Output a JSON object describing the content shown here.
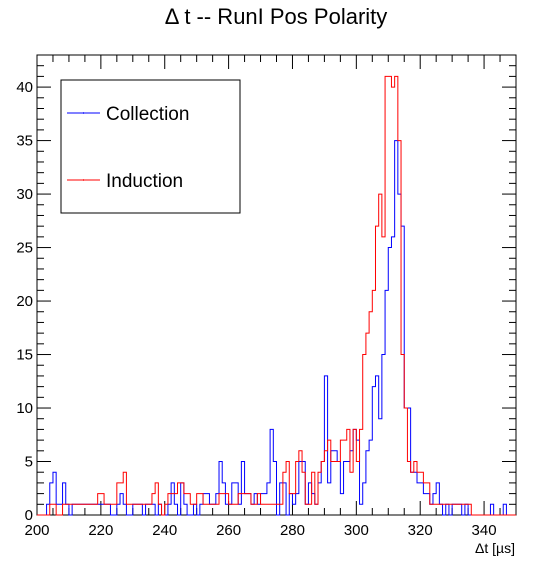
{
  "chart_data": {
    "type": "histogram",
    "title": "Δ t -- RunI Pos Polarity",
    "xlabel": "Δt [µs]",
    "ylabel": "",
    "xlim": [
      200,
      350
    ],
    "ylim": [
      0,
      43
    ],
    "bin_width": 1,
    "x_ticks": [
      200,
      220,
      240,
      260,
      280,
      300,
      320,
      340
    ],
    "y_ticks": [
      0,
      5,
      10,
      15,
      20,
      25,
      30,
      35,
      40
    ],
    "legend": {
      "placement": "top-left"
    },
    "series": [
      {
        "name": "Collection",
        "color": "#0000ff",
        "x_start": 200,
        "values": [
          0,
          0,
          0,
          1,
          3,
          4,
          1,
          1,
          3,
          1,
          0,
          1,
          1,
          1,
          1,
          1,
          1,
          1,
          1,
          1,
          1,
          1,
          1,
          0,
          0,
          1,
          2,
          1,
          0,
          0,
          1,
          1,
          1,
          0,
          1,
          1,
          1,
          0,
          1,
          0,
          0,
          1,
          3,
          1,
          0,
          3,
          1,
          0,
          0,
          1,
          0,
          1,
          2,
          2,
          1,
          1,
          2,
          5,
          3,
          1,
          1,
          3,
          3,
          1,
          5,
          2,
          2,
          1,
          2,
          1,
          2,
          2,
          3,
          8,
          5,
          0,
          3,
          3,
          0,
          2,
          1,
          2,
          5,
          5,
          1,
          3,
          2,
          1,
          3,
          5,
          13,
          3,
          6,
          6,
          5,
          2,
          5,
          5,
          6,
          8,
          7,
          1,
          3,
          6,
          7,
          12,
          13,
          9,
          15,
          21,
          25,
          26,
          35,
          30,
          27,
          10,
          10,
          4,
          4,
          3,
          3,
          2,
          2,
          1,
          2,
          3,
          1,
          0,
          1,
          0,
          1,
          1,
          1,
          0,
          1,
          0,
          0,
          0,
          0,
          0,
          0,
          0,
          1,
          0,
          0,
          0,
          1,
          0,
          0,
          0
        ]
      },
      {
        "name": "Induction",
        "color": "#ff0000",
        "x_start": 200,
        "values": [
          0,
          0,
          0,
          0,
          1,
          1,
          0,
          0,
          1,
          1,
          1,
          1,
          1,
          1,
          1,
          1,
          1,
          1,
          1,
          2,
          2,
          1,
          1,
          1,
          1,
          3,
          3,
          4,
          1,
          1,
          1,
          1,
          1,
          1,
          1,
          1,
          2,
          3,
          1,
          0,
          1,
          2,
          2,
          2,
          3,
          3,
          2,
          2,
          1,
          1,
          2,
          2,
          1,
          1,
          1,
          1,
          1,
          2,
          2,
          2,
          1,
          1,
          1,
          2,
          2,
          2,
          2,
          1,
          1,
          2,
          1,
          1,
          1,
          1,
          1,
          1,
          1,
          4,
          5,
          2,
          2,
          5,
          6,
          4,
          1,
          1,
          4,
          1,
          4,
          5,
          6,
          7,
          5,
          5,
          5,
          7,
          7,
          8,
          4,
          8,
          5,
          8,
          15,
          17,
          19,
          21,
          27,
          30,
          26,
          41,
          41,
          40,
          41,
          35,
          15,
          10,
          5,
          4,
          5,
          4,
          4,
          3,
          3,
          1,
          1,
          1,
          1,
          1,
          1,
          1,
          1,
          1,
          1,
          1,
          1,
          1,
          0,
          0,
          0,
          0,
          0,
          0,
          0,
          0,
          0,
          0,
          0,
          0,
          0,
          0
        ]
      }
    ]
  }
}
